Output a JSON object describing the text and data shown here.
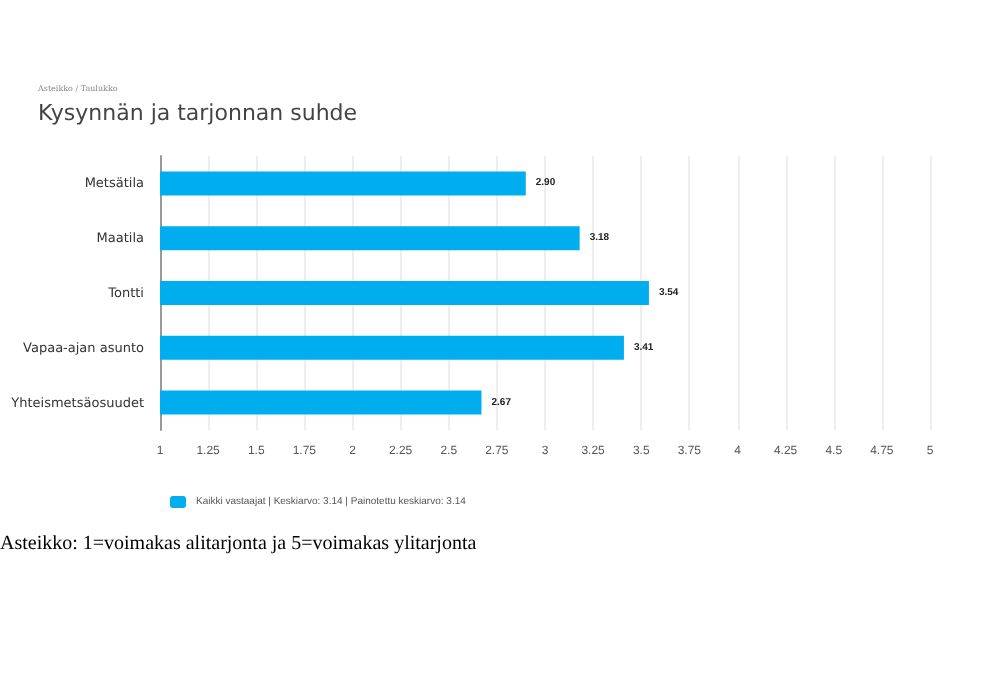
{
  "chart_data": {
    "type": "bar",
    "orientation": "horizontal",
    "subtitle": "Asteikko / Taulukko",
    "title": "Kysynnän ja tarjonnan suhde",
    "categories": [
      "Metsätila",
      "Maatila",
      "Tontti",
      "Vapaa-ajan asunto",
      "Yhteismetsäosuudet"
    ],
    "series": [
      {
        "name": "Kaikki vastaajat | Keskiarvo: 3.14 | Painotettu keskiarvo: 3.14",
        "color": "#00aeef",
        "values": [
          2.9,
          3.18,
          3.54,
          3.41,
          2.67
        ],
        "value_labels": [
          "2.90",
          "3.18",
          "3.54",
          "3.41",
          "2.67"
        ]
      }
    ],
    "xlim": [
      1,
      5
    ],
    "xticks": [
      1,
      1.25,
      1.5,
      1.75,
      2,
      2.25,
      2.5,
      2.75,
      3,
      3.25,
      3.5,
      3.75,
      4,
      4.25,
      4.5,
      4.75,
      5
    ],
    "grid": "x",
    "legend": "bottom",
    "annotations": [
      "Asteikko: 1=voimakas alitarjonta ja 5=voimakas ylitarjonta"
    ]
  }
}
